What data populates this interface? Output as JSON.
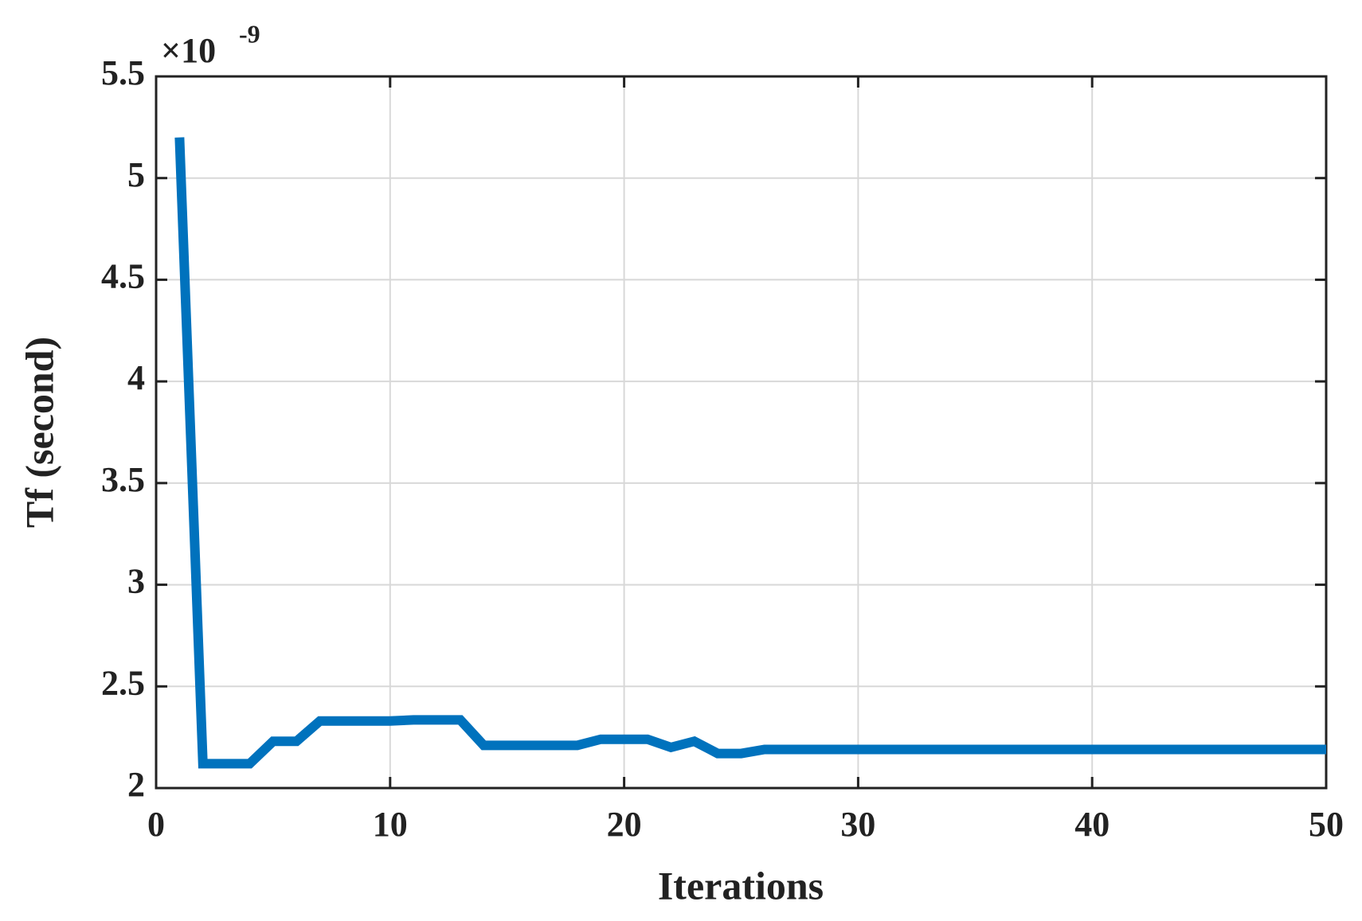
{
  "chart_data": {
    "type": "line",
    "x_label": "Iterations",
    "y_label": "Tf (second)",
    "y_multiplier": "×10",
    "y_exponent": "-9",
    "x": [
      1,
      2,
      3,
      4,
      5,
      6,
      7,
      8,
      9,
      10,
      11,
      12,
      13,
      14,
      15,
      16,
      17,
      18,
      19,
      20,
      21,
      22,
      23,
      24,
      25,
      26,
      27,
      28,
      29,
      30,
      31,
      32,
      33,
      34,
      35,
      36,
      37,
      38,
      39,
      40,
      41,
      42,
      43,
      44,
      45,
      46,
      47,
      48,
      49,
      50
    ],
    "series": [
      {
        "name": "Tf",
        "color": "#0072bd",
        "values": [
          5.2,
          2.12,
          2.12,
          2.12,
          2.23,
          2.23,
          2.33,
          2.33,
          2.33,
          2.33,
          2.335,
          2.335,
          2.335,
          2.21,
          2.21,
          2.21,
          2.21,
          2.21,
          2.24,
          2.24,
          2.24,
          2.2,
          2.23,
          2.17,
          2.17,
          2.19,
          2.19,
          2.19,
          2.19,
          2.19,
          2.19,
          2.19,
          2.19,
          2.19,
          2.19,
          2.19,
          2.19,
          2.19,
          2.19,
          2.19,
          2.19,
          2.19,
          2.19,
          2.19,
          2.19,
          2.19,
          2.19,
          2.19,
          2.19,
          2.19
        ]
      }
    ],
    "xlim": [
      0,
      50
    ],
    "xticks": [
      0,
      10,
      20,
      30,
      40,
      50
    ],
    "ylim": [
      2,
      5.5
    ],
    "yticks": [
      2,
      2.5,
      3,
      3.5,
      4,
      4.5,
      5,
      5.5
    ],
    "grid": true
  }
}
